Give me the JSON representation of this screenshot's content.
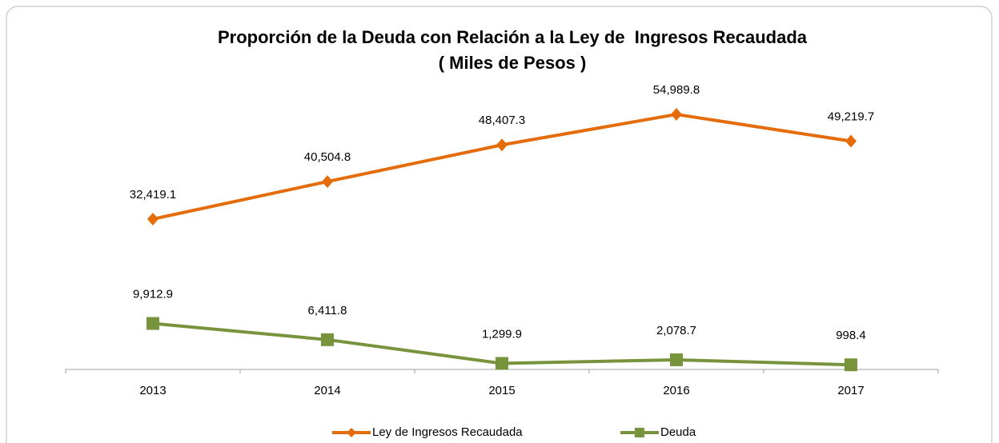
{
  "chart_data": {
    "type": "line",
    "title": "Proporción de la Deuda con Relación a la Ley de  Ingresos Recaudada",
    "subtitle": "( Miles de Pesos )",
    "categories": [
      "2013",
      "2014",
      "2015",
      "2016",
      "2017"
    ],
    "series": [
      {
        "name": "Ley de Ingresos Recaudada",
        "color": "#e46c0a",
        "marker": "diamond",
        "values": [
          32419.1,
          40504.8,
          48407.3,
          54989.8,
          49219.7
        ],
        "value_labels": [
          "32,419.1",
          "40,504.8",
          "48,407.3",
          "54,989.8",
          "49,219.7"
        ]
      },
      {
        "name": "Deuda",
        "color": "#77933c",
        "marker": "square",
        "values": [
          9912.9,
          6411.8,
          1299.9,
          2078.7,
          998.4
        ],
        "value_labels": [
          "9,912.9",
          "6,411.8",
          "1,299.9",
          "2,078.7",
          "998.4"
        ]
      }
    ],
    "ylim": [
      0,
      60000
    ],
    "legend": "bottom"
  }
}
